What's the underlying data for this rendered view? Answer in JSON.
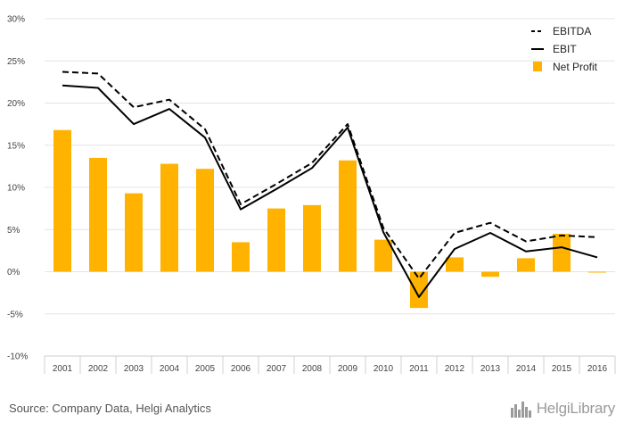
{
  "chart_data": {
    "type": "bar",
    "categories": [
      "2001",
      "2002",
      "2003",
      "2004",
      "2005",
      "2006",
      "2007",
      "2008",
      "2009",
      "2010",
      "2011",
      "2012",
      "2013",
      "2014",
      "2015",
      "2016"
    ],
    "ylim": [
      -10,
      30
    ],
    "y_ticks": [
      "-10%",
      "-5%",
      "0%",
      "5%",
      "10%",
      "15%",
      "20%",
      "25%",
      "30%"
    ],
    "grid": true,
    "legend_position": "top-right",
    "series": [
      {
        "name": "EBITDA",
        "kind": "line-dashed",
        "color": "#000000",
        "values": [
          23.7,
          23.5,
          19.5,
          20.4,
          16.9,
          8.0,
          10.4,
          12.9,
          17.5,
          5.2,
          -0.8,
          4.6,
          5.8,
          3.6,
          4.3,
          4.1
        ]
      },
      {
        "name": "EBIT",
        "kind": "line",
        "color": "#000000",
        "values": [
          22.1,
          21.8,
          17.5,
          19.3,
          15.9,
          7.4,
          9.8,
          12.3,
          17.1,
          4.7,
          -3.0,
          2.7,
          4.6,
          2.4,
          2.9,
          1.7
        ]
      },
      {
        "name": "Net Profit",
        "kind": "bar",
        "color": "#FFB300",
        "values": [
          16.8,
          13.5,
          9.3,
          12.8,
          12.2,
          3.5,
          7.5,
          7.9,
          13.2,
          3.8,
          -4.3,
          1.7,
          -0.6,
          1.6,
          4.5,
          -0.1
        ]
      }
    ]
  },
  "footer": {
    "source": "Source: Company Data, Helgi Analytics",
    "logo_text": "HelgiLibrary"
  }
}
